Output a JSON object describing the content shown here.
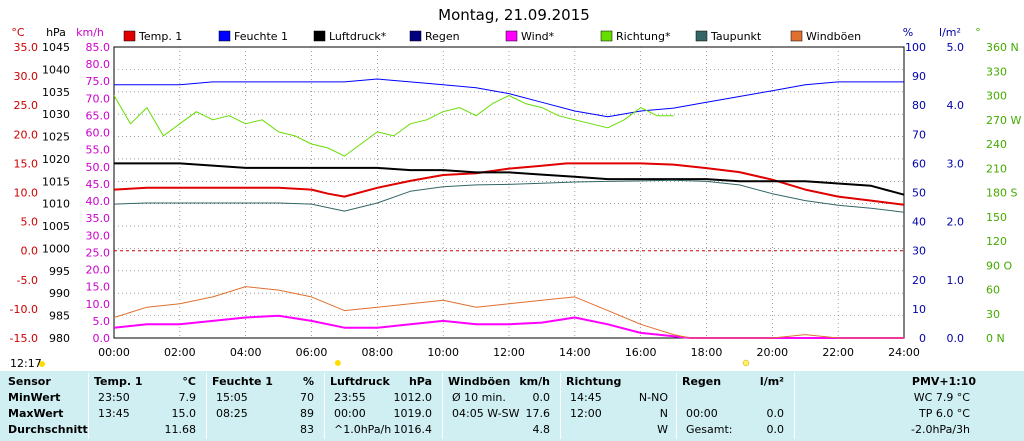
{
  "chart_data": {
    "type": "line",
    "title": "Montag, 21.09.2015",
    "time_label": "12:17",
    "x_ticks": [
      "00:00",
      "02:00",
      "04:00",
      "06:00",
      "08:00",
      "10:00",
      "12:00",
      "14:00",
      "16:00",
      "18:00",
      "20:00",
      "22:00",
      "24:00"
    ],
    "grid": true,
    "legend_position": "top",
    "axes": {
      "temp": {
        "unit": "°C",
        "ticks": [
          "35.0",
          "30.0",
          "25.0",
          "20.0",
          "15.0",
          "10.0",
          "5.0",
          "0.0",
          "-5.0",
          "-10.0",
          "-15.0"
        ],
        "range": [
          -15,
          35
        ],
        "color": "#cc0000"
      },
      "pressure": {
        "unit": "hPa",
        "ticks": [
          "1045",
          "1040",
          "1035",
          "1030",
          "1025",
          "1020",
          "1015",
          "1010",
          "1005",
          "1000",
          "995",
          "990",
          "985",
          "980"
        ],
        "range": [
          980,
          1045
        ],
        "color": "#000000"
      },
      "wind": {
        "unit": "km/h",
        "ticks": [
          "85.0",
          "80.0",
          "75.0",
          "70.0",
          "65.0",
          "60.0",
          "55.0",
          "50.0",
          "45.0",
          "40.0",
          "35.0",
          "30.0",
          "25.0",
          "20.0",
          "15.0",
          "10.0",
          "5.0",
          "0.0"
        ],
        "range": [
          0,
          85
        ],
        "color": "#cc00cc"
      },
      "humidity": {
        "unit": "%",
        "ticks": [
          "100",
          "90",
          "80",
          "70",
          "60",
          "50",
          "40",
          "30",
          "20",
          "10",
          "0"
        ],
        "range": [
          0,
          100
        ],
        "color": "#0000aa"
      },
      "rain": {
        "unit": "l/m²",
        "ticks": [
          "5.0",
          "4.0",
          "3.0",
          "2.0",
          "1.0",
          "0.0"
        ],
        "range": [
          0,
          5
        ],
        "color": "#0000aa"
      },
      "direction": {
        "unit": "°",
        "ticks": [
          "360 N",
          "330",
          "300",
          "270 W",
          "240",
          "210",
          "180 S",
          "150",
          "120",
          "90 O",
          "60",
          "30",
          "0 N"
        ],
        "range": [
          0,
          360
        ],
        "color": "#44aa00"
      }
    },
    "series": [
      {
        "name": "Temp. 1",
        "color": "#e00000",
        "axis": "temp",
        "x": [
          0,
          1,
          2,
          3,
          4,
          5,
          6,
          6.5,
          7,
          8,
          9,
          10,
          11,
          12,
          13,
          13.75,
          14,
          15,
          16,
          17,
          18,
          19,
          20,
          21,
          22,
          23,
          24
        ],
        "y": [
          10.5,
          10.8,
          10.8,
          10.8,
          10.8,
          10.8,
          10.5,
          9.8,
          9.3,
          10.8,
          12.0,
          13.0,
          13.3,
          14.1,
          14.6,
          15.0,
          15.0,
          15.0,
          15.0,
          14.8,
          14.2,
          13.5,
          12.2,
          10.5,
          9.3,
          8.6,
          7.9
        ]
      },
      {
        "name": "Feuchte 1",
        "color": "#0000ff",
        "axis": "humidity",
        "x": [
          0,
          1,
          2,
          3,
          4,
          5,
          6,
          7,
          8,
          9,
          10,
          11,
          12,
          13,
          14,
          15,
          16,
          17,
          18,
          19,
          20,
          21,
          22,
          23,
          24
        ],
        "y": [
          87,
          87,
          87,
          88,
          88,
          88,
          88,
          88,
          89,
          88,
          87,
          86,
          84,
          81,
          78,
          76,
          78,
          79,
          81,
          83,
          85,
          87,
          88,
          88,
          88
        ]
      },
      {
        "name": "Luftdruck*",
        "color": "#000000",
        "axis": "pressure",
        "x": [
          0,
          1,
          2,
          3,
          4,
          5,
          6,
          7,
          8,
          9,
          10,
          11,
          12,
          13,
          14,
          15,
          16,
          17,
          18,
          19,
          20,
          21,
          22,
          23,
          24
        ],
        "y": [
          1019.0,
          1019.0,
          1019.0,
          1018.5,
          1018.0,
          1018.0,
          1018.0,
          1018.0,
          1018.0,
          1017.5,
          1017.5,
          1017.0,
          1017.0,
          1016.5,
          1016.0,
          1015.5,
          1015.5,
          1015.5,
          1015.5,
          1015.0,
          1015.0,
          1015.0,
          1014.5,
          1014.0,
          1012.0
        ]
      },
      {
        "name": "Regen",
        "color": "#000080",
        "axis": "rain",
        "x": [
          0,
          24
        ],
        "y": [
          0,
          0
        ]
      },
      {
        "name": "Wind*",
        "color": "#ff00ff",
        "axis": "wind",
        "x": [
          0,
          1,
          2,
          3,
          4,
          5,
          6,
          7,
          8,
          9,
          10,
          11,
          12,
          13,
          14,
          15,
          16,
          17,
          17.5,
          18,
          19,
          20,
          21,
          22,
          23,
          24
        ],
        "y": [
          3.0,
          4.0,
          4.0,
          5.0,
          6.0,
          6.5,
          5.0,
          3.0,
          3.0,
          4.0,
          5.0,
          4.0,
          4.0,
          4.5,
          6.0,
          4.0,
          1.5,
          0.5,
          0.0,
          0.0,
          0.0,
          0.0,
          0.0,
          0.0,
          0.0,
          0.0
        ]
      },
      {
        "name": "Richtung*",
        "color": "#66dd00",
        "axis": "direction",
        "x": [
          0,
          0.5,
          1,
          1.5,
          2,
          2.5,
          3,
          3.5,
          4,
          4.5,
          5,
          5.5,
          6,
          6.5,
          7,
          7.5,
          8,
          8.5,
          9,
          9.5,
          10,
          10.5,
          11,
          11.5,
          12,
          12.5,
          13,
          13.5,
          14,
          14.5,
          15,
          15.5,
          16,
          16.5,
          17
        ],
        "y": [
          300,
          265,
          285,
          250,
          265,
          280,
          270,
          275,
          265,
          270,
          255,
          250,
          240,
          235,
          225,
          240,
          255,
          250,
          265,
          270,
          280,
          285,
          275,
          290,
          300,
          290,
          285,
          275,
          270,
          265,
          260,
          270,
          285,
          275,
          275
        ]
      },
      {
        "name": "Taupunkt",
        "color": "#336666",
        "axis": "temp",
        "x": [
          0,
          1,
          2,
          3,
          4,
          5,
          6,
          7,
          8,
          9,
          10,
          11,
          12,
          13,
          14,
          15,
          16,
          17,
          18,
          19,
          20,
          21,
          22,
          23,
          24
        ],
        "y": [
          8.0,
          8.2,
          8.2,
          8.2,
          8.2,
          8.2,
          8.0,
          6.8,
          8.2,
          10.2,
          11.0,
          11.3,
          11.4,
          11.6,
          11.8,
          11.9,
          12.0,
          12.1,
          11.9,
          11.3,
          9.8,
          8.6,
          7.8,
          7.3,
          6.6
        ]
      },
      {
        "name": "Windböen",
        "color": "#e07030",
        "axis": "wind",
        "x": [
          0,
          1,
          2,
          3,
          4,
          5,
          6,
          7,
          8,
          9,
          10,
          11,
          12,
          13,
          14,
          15,
          16,
          17,
          17.5,
          18,
          19,
          20,
          21,
          22,
          23,
          24
        ],
        "y": [
          6.0,
          9.0,
          10.0,
          12.0,
          15.0,
          14.0,
          12.0,
          8.0,
          9.0,
          10.0,
          11.0,
          9.0,
          10.0,
          11.0,
          12.0,
          8.0,
          4.0,
          1.0,
          0.0,
          0.0,
          0.0,
          0.0,
          1.0,
          0.0,
          0.0,
          0.0
        ]
      }
    ]
  },
  "summary": {
    "row_labels": [
      "Sensor",
      "MinWert",
      "MaxWert",
      "Durchschnitt"
    ],
    "groups": [
      {
        "title": "Temp. 1",
        "unit": "°C",
        "rows": [
          [
            "23:50",
            "7.9"
          ],
          [
            "13:45",
            "15.0"
          ],
          [
            "",
            "11.68"
          ]
        ]
      },
      {
        "title": "Feuchte 1",
        "unit": "%",
        "rows": [
          [
            "15:05",
            "70"
          ],
          [
            "08:25",
            "89"
          ],
          [
            "",
            "83"
          ]
        ]
      },
      {
        "title": "Luftdruck",
        "unit": "hPa",
        "rows": [
          [
            "23:55",
            "1012.0"
          ],
          [
            "00:00",
            "1019.0"
          ],
          [
            "^1.0hPa/h",
            "1016.4"
          ]
        ]
      },
      {
        "title": "Windböen",
        "unit": "km/h",
        "rows": [
          [
            "Ø 10 min.",
            "0.0"
          ],
          [
            "04:05 W-SW",
            "17.6"
          ],
          [
            "",
            "4.8"
          ]
        ]
      },
      {
        "title": "Richtung",
        "unit": "",
        "rows": [
          [
            "14:45",
            "N-NO"
          ],
          [
            "12:00",
            "N"
          ],
          [
            "",
            "W"
          ]
        ]
      },
      {
        "title": "Regen",
        "unit": "l/m²",
        "rows": [
          [
            "",
            ""
          ],
          [
            "00:00",
            "0.0"
          ],
          [
            "Gesamt:",
            "0.0"
          ]
        ]
      }
    ],
    "pmv": {
      "title": "PMV+1:10",
      "lines": [
        "WC 7.9 °C",
        "TP 6.0 °C",
        "-2.0hPa/3h"
      ]
    }
  }
}
